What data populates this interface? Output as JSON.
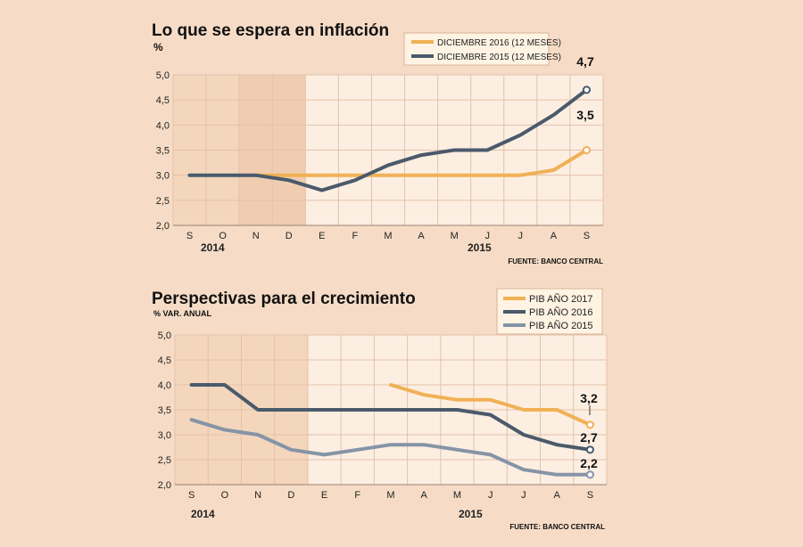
{
  "chart_data": [
    {
      "type": "line",
      "title": "Lo que se espera en inflación",
      "unit": "%",
      "categories": [
        "S",
        "O",
        "N",
        "D",
        "E",
        "F",
        "M",
        "A",
        "M",
        "J",
        "J",
        "A",
        "S"
      ],
      "years": [
        "2014",
        "2015"
      ],
      "ylim": [
        2.0,
        5.0
      ],
      "yticks": [
        "2,0",
        "2,5",
        "3,0",
        "3,5",
        "4,0",
        "4,5",
        "5,0"
      ],
      "series": [
        {
          "name": "DICIEMBRE 2016 (12 MESES)",
          "color": "#f0b155",
          "values": [
            null,
            null,
            3.0,
            3.0,
            3.0,
            3.0,
            3.0,
            3.0,
            3.0,
            3.0,
            3.0,
            3.1,
            3.5
          ],
          "end_label": "3,5"
        },
        {
          "name": "DICIEMBRE 2015 (12 MESES)",
          "color": "#4a5a6b",
          "values": [
            3.0,
            3.0,
            3.0,
            2.9,
            2.7,
            2.9,
            3.2,
            3.4,
            3.5,
            3.5,
            3.8,
            4.2,
            4.7
          ],
          "end_label": "4,7"
        }
      ],
      "source": "FUENTE: BANCO CENTRAL"
    },
    {
      "type": "line",
      "title": "Perspectivas para el crecimiento",
      "unit": "% VAR. ANUAL",
      "categories": [
        "S",
        "O",
        "N",
        "D",
        "E",
        "F",
        "M",
        "A",
        "M",
        "J",
        "J",
        "A",
        "S"
      ],
      "years": [
        "2014",
        "2015"
      ],
      "ylim": [
        2.0,
        5.0
      ],
      "yticks": [
        "2,0",
        "2,5",
        "3,0",
        "3,5",
        "4,0",
        "4,5",
        "5,0"
      ],
      "series": [
        {
          "name": "PIB AÑO 2017",
          "color": "#f0b155",
          "values": [
            null,
            null,
            null,
            null,
            null,
            null,
            4.0,
            3.8,
            3.7,
            3.7,
            3.5,
            3.5,
            3.2
          ],
          "end_label": "3,2"
        },
        {
          "name": "PIB AÑO 2016",
          "color": "#4a5a6b",
          "values": [
            4.0,
            4.0,
            3.5,
            3.5,
            3.5,
            3.5,
            3.5,
            3.5,
            3.5,
            3.4,
            3.0,
            2.8,
            2.7
          ],
          "end_label": "2,7"
        },
        {
          "name": "PIB AÑO 2015",
          "color": "#8594a6",
          "values": [
            3.3,
            3.1,
            3.0,
            2.7,
            2.6,
            2.7,
            2.8,
            2.8,
            2.7,
            2.6,
            2.3,
            2.2,
            2.2
          ],
          "end_label": "2,2"
        }
      ],
      "source": "FUENTE: BANCO CENTRAL"
    }
  ]
}
